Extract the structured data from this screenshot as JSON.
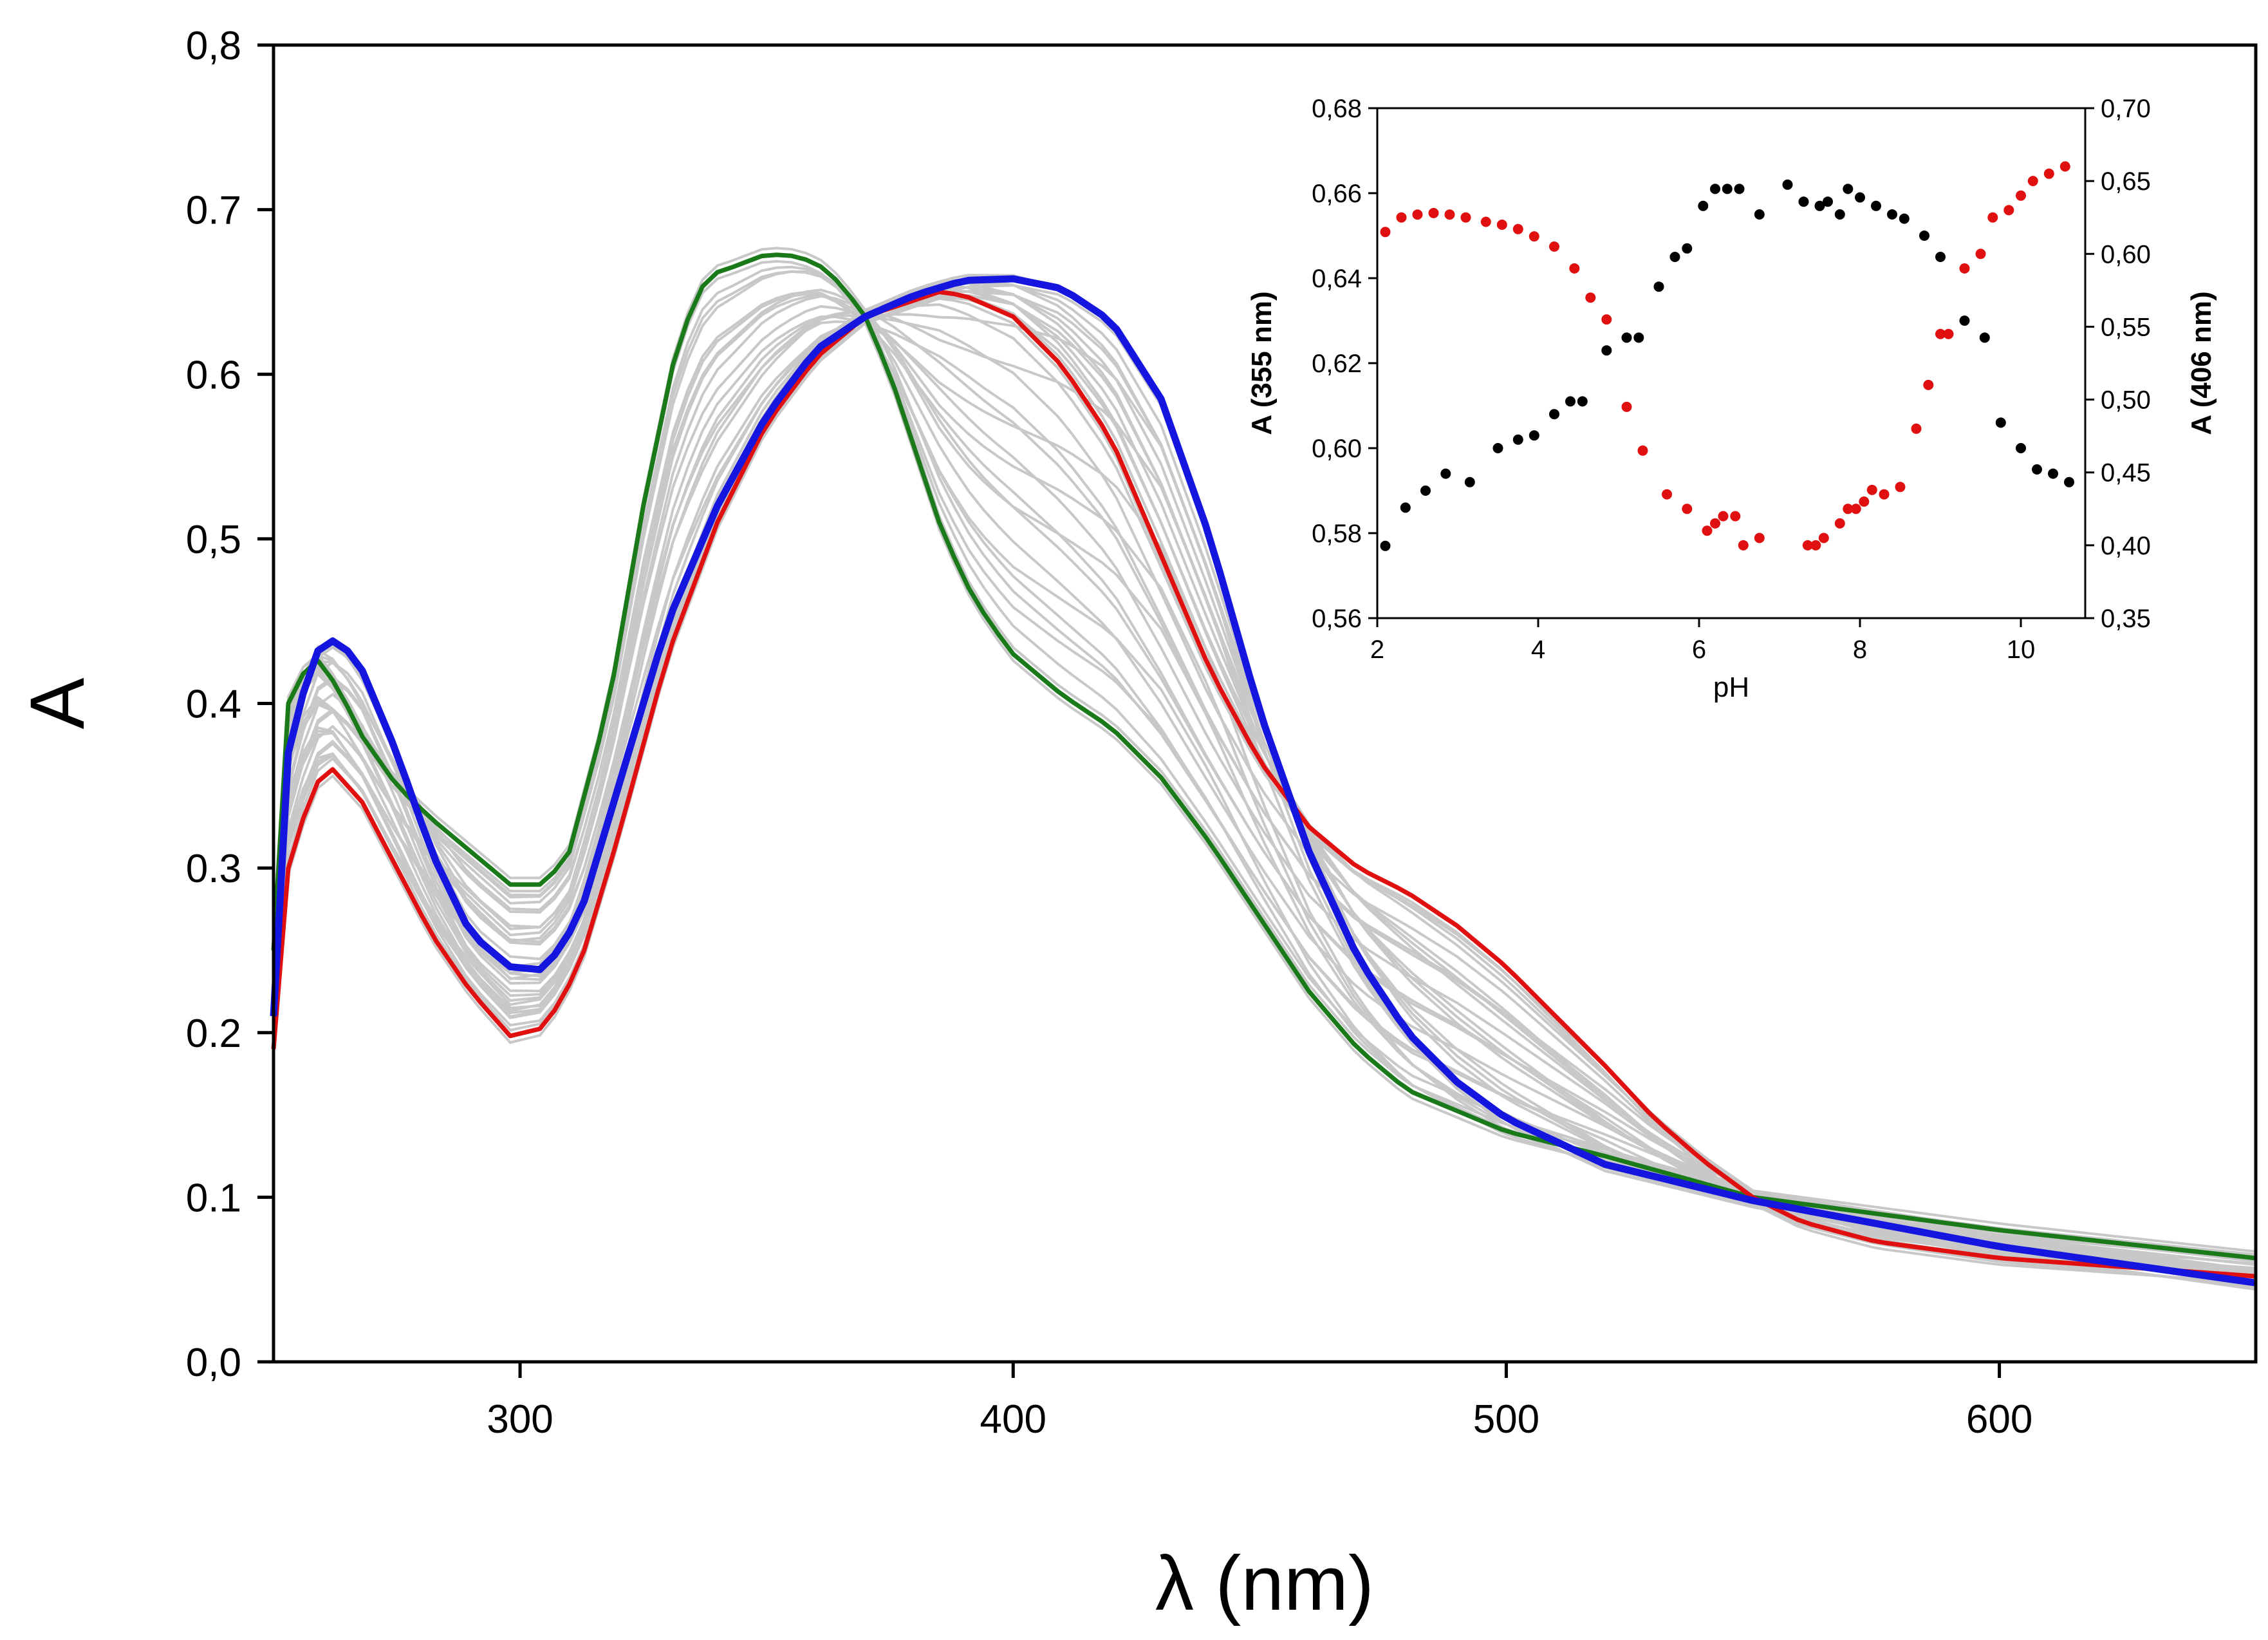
{
  "chart_data": [
    {
      "type": "line",
      "xlabel": "λ (nm)",
      "ylabel": "A",
      "xlim": [
        250,
        652
      ],
      "ylim": [
        0.0,
        0.8
      ],
      "xticks": [
        300,
        400,
        500,
        600
      ],
      "yticks": [
        0.0,
        0.1,
        0.2,
        0.3,
        0.4,
        0.5,
        0.6,
        0.7,
        0.8
      ],
      "xtick_labels": [
        "300",
        "400",
        "500",
        "600"
      ],
      "ytick_labels": [
        "0,0",
        "0.1",
        "0.2",
        "0.3",
        "0.4",
        "0,5",
        "0.6",
        "0.7",
        "0,8"
      ],
      "grid": false,
      "series": [
        {
          "color": "#1a7a1a",
          "x": [
            250,
            253,
            258,
            263,
            268,
            275,
            282,
            290,
            298,
            305,
            310,
            318,
            325,
            332,
            338,
            343,
            350,
            355,
            360,
            365,
            370,
            375,
            380,
            385,
            390,
            395,
            400,
            410,
            420,
            430,
            440,
            450,
            460,
            470,
            480,
            500,
            520,
            550,
            600,
            652
          ],
          "y": [
            0.25,
            0.4,
            0.43,
            0.41,
            0.38,
            0.35,
            0.33,
            0.31,
            0.29,
            0.29,
            0.31,
            0.4,
            0.52,
            0.62,
            0.66,
            0.665,
            0.673,
            0.672,
            0.668,
            0.655,
            0.635,
            0.6,
            0.555,
            0.51,
            0.475,
            0.45,
            0.43,
            0.405,
            0.385,
            0.355,
            0.315,
            0.27,
            0.225,
            0.19,
            0.165,
            0.14,
            0.125,
            0.1,
            0.08,
            0.063
          ]
        },
        {
          "color": "#e01010",
          "x": [
            250,
            253,
            258,
            262,
            268,
            275,
            282,
            290,
            298,
            305,
            312,
            320,
            330,
            340,
            350,
            360,
            370,
            380,
            385,
            390,
            400,
            410,
            420,
            430,
            440,
            450,
            460,
            470,
            480,
            490,
            500,
            510,
            520,
            530,
            540,
            550,
            560,
            575,
            600,
            652
          ],
          "y": [
            0.19,
            0.3,
            0.35,
            0.36,
            0.34,
            0.3,
            0.26,
            0.225,
            0.198,
            0.203,
            0.24,
            0.32,
            0.43,
            0.51,
            0.57,
            0.61,
            0.635,
            0.645,
            0.65,
            0.648,
            0.635,
            0.605,
            0.56,
            0.49,
            0.42,
            0.365,
            0.325,
            0.3,
            0.285,
            0.265,
            0.24,
            0.21,
            0.18,
            0.148,
            0.122,
            0.1,
            0.085,
            0.073,
            0.063,
            0.052
          ]
        },
        {
          "color": "#1515e0",
          "x": [
            250,
            253,
            258,
            263,
            268,
            275,
            282,
            290,
            298,
            305,
            312,
            320,
            330,
            340,
            350,
            360,
            370,
            380,
            390,
            400,
            410,
            420,
            430,
            440,
            450,
            460,
            470,
            480,
            490,
            500,
            520,
            550,
            600,
            652
          ],
          "y": [
            0.21,
            0.37,
            0.43,
            0.44,
            0.42,
            0.37,
            0.31,
            0.26,
            0.24,
            0.238,
            0.27,
            0.35,
            0.45,
            0.52,
            0.575,
            0.615,
            0.635,
            0.648,
            0.657,
            0.658,
            0.652,
            0.632,
            0.585,
            0.5,
            0.395,
            0.31,
            0.245,
            0.2,
            0.17,
            0.148,
            0.12,
            0.098,
            0.07,
            0.048
          ]
        }
      ],
      "background_series_color": "#c8c8c8"
    },
    {
      "type": "scatter",
      "xlabel": "pH",
      "ylabel": "A (355 nm)",
      "y2label": "A (406 nm)",
      "xlim": [
        2,
        10.8
      ],
      "ylim": [
        0.56,
        0.68
      ],
      "y2lim": [
        0.35,
        0.7
      ],
      "xticks": [
        2,
        4,
        6,
        8,
        10
      ],
      "yticks": [
        0.56,
        0.58,
        0.6,
        0.62,
        0.64,
        0.66,
        0.68
      ],
      "y2ticks": [
        0.35,
        0.4,
        0.45,
        0.5,
        0.55,
        0.6,
        0.65,
        0.7
      ],
      "xtick_labels": [
        "2",
        "4",
        "6",
        "8",
        "10"
      ],
      "ytick_labels": [
        "0,56",
        "0,58",
        "0,60",
        "0,62",
        "0,64",
        "0,66",
        "0,68"
      ],
      "y2tick_labels": [
        "0,35",
        "0,40",
        "0,45",
        "0,50",
        "0,55",
        "0,60",
        "0,65",
        "0,70"
      ],
      "ylabel_color": "#000000",
      "y2label_color": "#e01010",
      "series": [
        {
          "axis": "left",
          "color": "#000000",
          "x": [
            2.1,
            2.35,
            2.6,
            2.85,
            3.15,
            3.5,
            3.75,
            3.95,
            4.2,
            4.4,
            4.55,
            4.85,
            5.1,
            5.25,
            5.5,
            5.7,
            5.85,
            6.05,
            6.2,
            6.35,
            6.5,
            6.75,
            7.1,
            7.3,
            7.5,
            7.6,
            7.75,
            7.85,
            8.0,
            8.2,
            8.4,
            8.55,
            8.8,
            9.0,
            9.3,
            9.55,
            9.75,
            10.0,
            10.2,
            10.4,
            10.6
          ],
          "y": [
            0.577,
            0.586,
            0.59,
            0.594,
            0.592,
            0.6,
            0.602,
            0.603,
            0.608,
            0.611,
            0.611,
            0.623,
            0.626,
            0.626,
            0.638,
            0.645,
            0.647,
            0.657,
            0.661,
            0.661,
            0.661,
            0.655,
            0.662,
            0.658,
            0.657,
            0.658,
            0.655,
            0.661,
            0.659,
            0.657,
            0.655,
            0.654,
            0.65,
            0.645,
            0.63,
            0.626,
            0.606,
            0.6,
            0.595,
            0.594,
            0.592
          ]
        },
        {
          "axis": "right",
          "color": "#e01010",
          "x": [
            2.1,
            2.3,
            2.5,
            2.7,
            2.9,
            3.1,
            3.35,
            3.55,
            3.75,
            3.95,
            4.2,
            4.45,
            4.65,
            4.85,
            5.1,
            5.3,
            5.6,
            5.85,
            6.1,
            6.2,
            6.3,
            6.45,
            6.55,
            6.75,
            7.35,
            7.45,
            7.55,
            7.75,
            7.85,
            7.95,
            8.05,
            8.15,
            8.3,
            8.5,
            8.7,
            8.85,
            9.0,
            9.1,
            9.3,
            9.5,
            9.65,
            9.85,
            10.0,
            10.15,
            10.35,
            10.55
          ],
          "y": [
            0.615,
            0.625,
            0.627,
            0.628,
            0.627,
            0.625,
            0.622,
            0.62,
            0.617,
            0.612,
            0.605,
            0.59,
            0.57,
            0.555,
            0.495,
            0.465,
            0.435,
            0.425,
            0.41,
            0.415,
            0.42,
            0.42,
            0.4,
            0.405,
            0.4,
            0.4,
            0.405,
            0.415,
            0.425,
            0.425,
            0.43,
            0.438,
            0.435,
            0.44,
            0.48,
            0.51,
            0.545,
            0.545,
            0.59,
            0.6,
            0.625,
            0.63,
            0.64,
            0.65,
            0.655,
            0.66
          ]
        }
      ]
    }
  ]
}
